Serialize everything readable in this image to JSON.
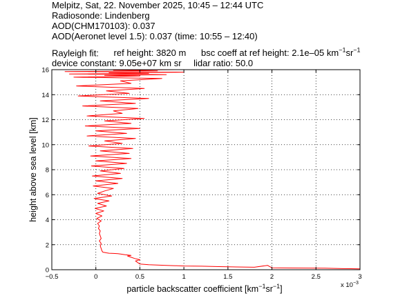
{
  "header": {
    "line1": "Melpitz, Sat, 22. November 2025, 10:45 – 12:44 UTC",
    "line2": "Radiosonde: Lindenberg",
    "line3": "AOD(CHM170103): 0.037",
    "line4": "AOD(Aeronet level 1.5): 0.037   (time: 10:55 – 12:40)",
    "rayleigh_prefix": "Rayleigh fit:",
    "ref_height": "ref height: 3820 m",
    "bsc_coeff_prefix": "bsc coeff at ref height: 2.1e–05 km",
    "bsc_unit_mid": "sr",
    "unit_exp": "−1",
    "device_constant": "device constant: 9.05e+07 km sr",
    "lidar_ratio": "lidar ratio: 50.0"
  },
  "chart_data": {
    "type": "line",
    "xlabel_main": "particle backscatter coefficient [km",
    "xlabel_mid": "sr",
    "xlabel_end": "]",
    "xlabel_exp": "−1",
    "ylabel": "height above sea level [km]",
    "x_multiplier": "x 10",
    "x_multiplier_exp": "−3",
    "xlim": [
      -0.5,
      3
    ],
    "ylim": [
      0,
      16
    ],
    "xticks": [
      "−0.5",
      "0",
      "0.5",
      "1",
      "1.5",
      "2",
      "2.5",
      "3"
    ],
    "yticks": [
      "0",
      "2",
      "4",
      "6",
      "8",
      "10",
      "12",
      "14",
      "16"
    ],
    "grid": true,
    "series_color": "#ff0000",
    "series": [
      {
        "x": [
          3.0,
          2.8,
          2.6,
          2.4,
          2.2,
          2.0,
          1.95,
          1.8,
          1.6,
          1.4,
          1.2,
          1.0,
          0.8,
          0.6,
          0.5,
          0.45,
          0.5,
          0.44,
          0.4,
          0.38,
          0.36,
          0.4,
          0.33,
          0.28,
          0.25,
          0.2,
          0.15,
          0.12,
          0.1,
          0.08,
          0.07,
          0.06,
          0.05,
          0.06,
          0.04,
          0.06,
          0.05,
          0.04,
          0.05,
          0.03,
          0.04,
          0.02,
          0.06,
          0.01,
          0.07,
          0.0,
          0.09,
          -0.01,
          0.12,
          0.02,
          0.15,
          -0.02,
          0.18,
          0.02,
          0.1,
          0.2,
          -0.03,
          0.25,
          0.0,
          0.3,
          -0.04,
          0.28,
          0.05,
          0.32,
          -0.05,
          0.35,
          0.0,
          0.4,
          -0.06,
          0.38,
          0.05,
          0.42,
          -0.08,
          0.3,
          0.1,
          0.45,
          -0.1,
          0.35,
          0.0,
          0.5,
          -0.12,
          0.4,
          0.1,
          0.55,
          -0.1,
          0.3,
          0.2,
          0.48,
          -0.15,
          0.45,
          0.05,
          0.6,
          -0.2,
          0.38,
          0.12,
          0.55,
          -0.22,
          0.4,
          0.28,
          0.75,
          -0.25,
          0.5,
          0.1,
          0.8,
          -0.3,
          0.6,
          0.15,
          1.0,
          -0.35,
          0.7,
          0.2,
          0.9,
          -0.4,
          0.5,
          0.3,
          1.0,
          -0.3,
          0.4,
          0.0
        ],
        "y": [
          0.07,
          0.09,
          0.12,
          0.13,
          0.14,
          0.15,
          0.35,
          0.2,
          0.22,
          0.25,
          0.28,
          0.3,
          0.35,
          0.4,
          0.45,
          0.7,
          0.8,
          0.9,
          1.0,
          1.05,
          1.1,
          1.15,
          1.2,
          1.25,
          1.28,
          1.3,
          1.32,
          1.35,
          1.38,
          1.4,
          1.5,
          1.7,
          1.9,
          2.1,
          2.3,
          2.5,
          2.7,
          2.9,
          3.1,
          3.3,
          3.5,
          3.7,
          3.9,
          4.1,
          4.3,
          4.5,
          4.7,
          4.9,
          5.1,
          5.3,
          5.5,
          5.7,
          5.9,
          6.1,
          6.3,
          6.5,
          6.7,
          6.9,
          7.1,
          7.3,
          7.5,
          7.7,
          7.9,
          8.1,
          8.3,
          8.5,
          8.7,
          8.9,
          9.1,
          9.3,
          9.5,
          9.7,
          9.9,
          10.1,
          10.3,
          10.5,
          10.7,
          10.9,
          11.1,
          11.3,
          11.5,
          11.7,
          11.9,
          12.1,
          12.3,
          12.5,
          12.7,
          12.9,
          13.1,
          13.3,
          13.5,
          13.7,
          13.9,
          14.1,
          14.3,
          14.5,
          14.7,
          14.9,
          15.1,
          15.3,
          15.4,
          15.5,
          15.55,
          15.6,
          15.65,
          15.7,
          15.75,
          15.8,
          15.85,
          15.9,
          15.95,
          16.0,
          16.0,
          16.0,
          16.0,
          16.0,
          16.0,
          16.0,
          16.0
        ]
      }
    ]
  }
}
